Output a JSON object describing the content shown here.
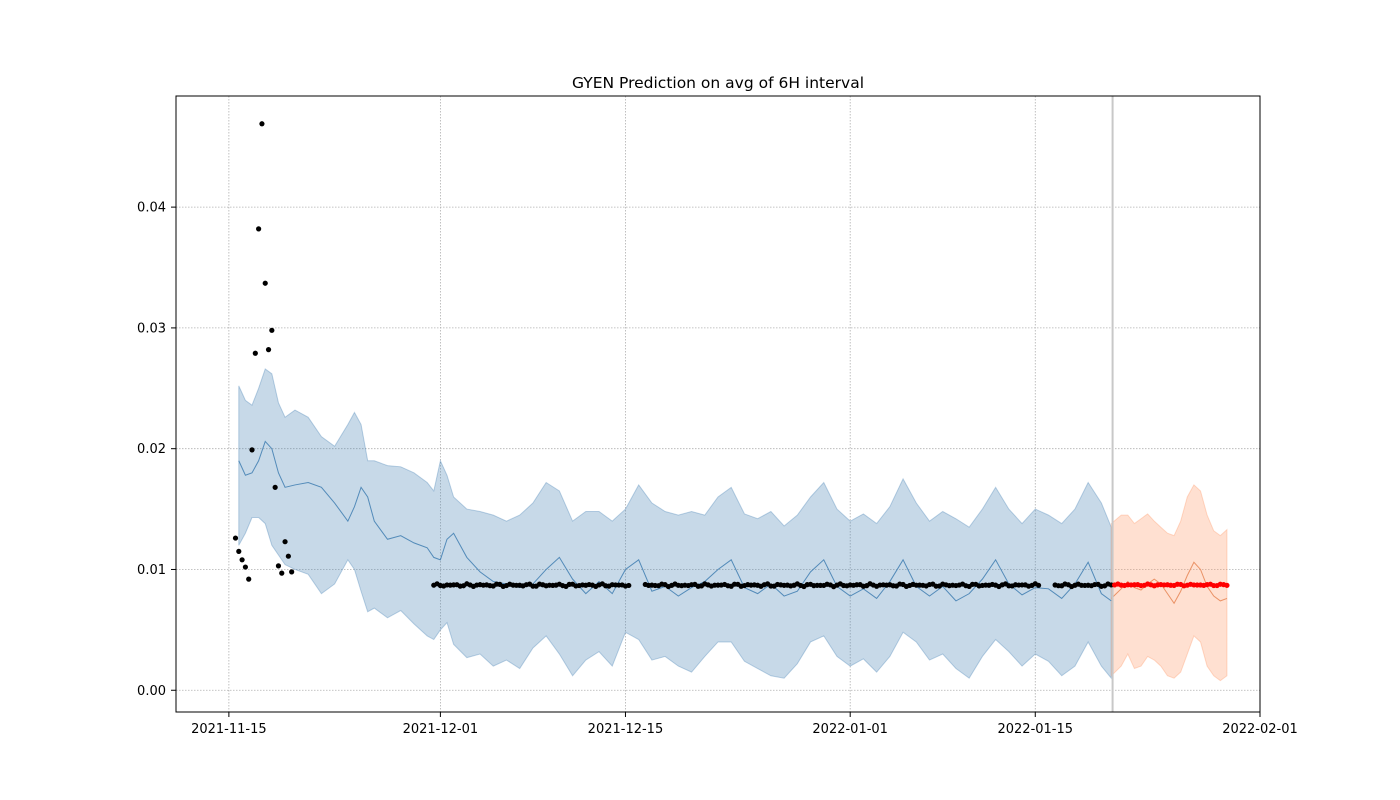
{
  "chart_data": {
    "type": "line",
    "title": "GYEN Prediction on avg of 6H interval",
    "xlabel": "",
    "ylabel": "",
    "x_type": "date",
    "xlim": [
      "2021-11-11",
      "2022-02-01"
    ],
    "ylim": [
      -0.0018,
      0.0492
    ],
    "x_ticks": [
      "2021-11-15",
      "2021-12-01",
      "2021-12-15",
      "2022-01-01",
      "2022-01-15",
      "2022-02-01"
    ],
    "y_ticks": [
      "0.00",
      "0.01",
      "0.02",
      "0.03",
      "0.04"
    ],
    "grid": true,
    "forecast_start": "2022-01-21",
    "colors": {
      "history_band": "#4682b4",
      "history_line": "#4682b4",
      "forecast_band": "#ff9966",
      "forecast_line": "#e8895a",
      "observed_points": "#000000",
      "forecast_points": "#ff0000",
      "divider": "#c8c8c8"
    },
    "series": [
      {
        "role": "history_fit",
        "band_style": "uncertainty",
        "x": [
          "2021-11-15 18:00",
          "2021-11-16 06:00",
          "2021-11-16 18:00",
          "2021-11-17 06:00",
          "2021-11-17 18:00",
          "2021-11-18 06:00",
          "2021-11-18 18:00",
          "2021-11-19 06:00",
          "2021-11-20 00:00",
          "2021-11-21 00:00",
          "2021-11-22 00:00",
          "2021-11-23 00:00",
          "2021-11-24 00:00",
          "2021-11-24 12:00",
          "2021-11-25 00:00",
          "2021-11-25 12:00",
          "2021-11-26 00:00",
          "2021-11-27 00:00",
          "2021-11-28 00:00",
          "2021-11-29 00:00",
          "2021-11-30 00:00",
          "2021-11-30 12:00",
          "2021-12-01 00:00",
          "2021-12-01 12:00",
          "2021-12-02 00:00",
          "2021-12-03 00:00",
          "2021-12-04 00:00",
          "2021-12-05 00:00",
          "2021-12-06 00:00",
          "2021-12-07 00:00",
          "2021-12-08 00:00",
          "2021-12-09 00:00",
          "2021-12-10 00:00",
          "2021-12-11 00:00",
          "2021-12-12 00:00",
          "2021-12-13 00:00",
          "2021-12-14 00:00",
          "2021-12-15 00:00",
          "2021-12-16 00:00",
          "2021-12-17 00:00",
          "2021-12-18 00:00",
          "2021-12-19 00:00",
          "2021-12-20 00:00",
          "2021-12-21 00:00",
          "2021-12-22 00:00",
          "2021-12-23 00:00",
          "2021-12-24 00:00",
          "2021-12-25 00:00",
          "2021-12-26 00:00",
          "2021-12-27 00:00",
          "2021-12-28 00:00",
          "2021-12-29 00:00",
          "2021-12-30 00:00",
          "2021-12-31 00:00",
          "2022-01-01 00:00",
          "2022-01-02 00:00",
          "2022-01-03 00:00",
          "2022-01-04 00:00",
          "2022-01-05 00:00",
          "2022-01-06 00:00",
          "2022-01-07 00:00",
          "2022-01-08 00:00",
          "2022-01-09 00:00",
          "2022-01-10 00:00",
          "2022-01-11 00:00",
          "2022-01-12 00:00",
          "2022-01-13 00:00",
          "2022-01-14 00:00",
          "2022-01-15 00:00",
          "2022-01-16 00:00",
          "2022-01-17 00:00",
          "2022-01-18 00:00",
          "2022-01-19 00:00",
          "2022-01-20 00:00",
          "2022-01-20 18:00"
        ],
        "y": [
          0.019,
          0.0178,
          0.018,
          0.019,
          0.0206,
          0.02,
          0.018,
          0.0168,
          0.017,
          0.0172,
          0.0168,
          0.0155,
          0.014,
          0.0152,
          0.0168,
          0.016,
          0.014,
          0.0125,
          0.0128,
          0.0122,
          0.0118,
          0.011,
          0.0108,
          0.0125,
          0.013,
          0.011,
          0.0098,
          0.009,
          0.0088,
          0.0085,
          0.0088,
          0.01,
          0.011,
          0.0092,
          0.008,
          0.009,
          0.008,
          0.01,
          0.0108,
          0.0082,
          0.0086,
          0.0078,
          0.0085,
          0.009,
          0.01,
          0.0108,
          0.0085,
          0.008,
          0.0088,
          0.0078,
          0.0082,
          0.0098,
          0.0108,
          0.0086,
          0.0078,
          0.0084,
          0.0076,
          0.009,
          0.0108,
          0.0086,
          0.0078,
          0.0086,
          0.0074,
          0.008,
          0.0092,
          0.0108,
          0.0088,
          0.0079,
          0.0085,
          0.0084,
          0.0076,
          0.0088,
          0.0106,
          0.008,
          0.0074
        ],
        "y_lower": [
          0.012,
          0.013,
          0.0143,
          0.0143,
          0.0138,
          0.012,
          0.0112,
          0.0104,
          0.01,
          0.0096,
          0.008,
          0.0088,
          0.0108,
          0.01,
          0.0082,
          0.0065,
          0.0068,
          0.006,
          0.0066,
          0.0055,
          0.0045,
          0.0042,
          0.005,
          0.0056,
          0.0038,
          0.0027,
          0.003,
          0.002,
          0.0025,
          0.0018,
          0.0035,
          0.0045,
          0.003,
          0.0012,
          0.0025,
          0.0032,
          0.002,
          0.0048,
          0.0042,
          0.0025,
          0.0028,
          0.002,
          0.0015,
          0.0028,
          0.004,
          0.004,
          0.0024,
          0.0018,
          0.0012,
          0.001,
          0.0022,
          0.004,
          0.0045,
          0.0028,
          0.002,
          0.0026,
          0.0015,
          0.0028,
          0.0048,
          0.004,
          0.0025,
          0.003,
          0.0018,
          0.001,
          0.0028,
          0.0042,
          0.0032,
          0.002,
          0.003,
          0.0024,
          0.0012,
          0.002,
          0.004,
          0.002,
          0.001
        ],
        "y_upper": [
          0.0252,
          0.024,
          0.0236,
          0.025,
          0.0266,
          0.0262,
          0.0238,
          0.0226,
          0.0232,
          0.0226,
          0.021,
          0.0202,
          0.022,
          0.023,
          0.022,
          0.019,
          0.019,
          0.0186,
          0.0185,
          0.018,
          0.0172,
          0.0165,
          0.019,
          0.0178,
          0.016,
          0.015,
          0.0148,
          0.0145,
          0.014,
          0.0145,
          0.0155,
          0.0172,
          0.0165,
          0.014,
          0.0148,
          0.0148,
          0.014,
          0.015,
          0.017,
          0.0155,
          0.0148,
          0.0145,
          0.0148,
          0.0145,
          0.016,
          0.0168,
          0.0146,
          0.0142,
          0.0148,
          0.0136,
          0.0145,
          0.016,
          0.0172,
          0.015,
          0.014,
          0.0146,
          0.0138,
          0.0152,
          0.0175,
          0.0155,
          0.014,
          0.0148,
          0.0142,
          0.0135,
          0.015,
          0.0168,
          0.015,
          0.0138,
          0.015,
          0.0145,
          0.0138,
          0.015,
          0.0172,
          0.0155,
          0.0135
        ]
      },
      {
        "role": "forecast",
        "band_style": "uncertainty",
        "x": [
          "2022-01-20 18:00",
          "2022-01-21 12:00",
          "2022-01-22 00:00",
          "2022-01-22 12:00",
          "2022-01-23 00:00",
          "2022-01-23 12:00",
          "2022-01-24 00:00",
          "2022-01-24 12:00",
          "2022-01-25 00:00",
          "2022-01-25 12:00",
          "2022-01-26 00:00",
          "2022-01-26 12:00",
          "2022-01-27 00:00",
          "2022-01-27 12:00",
          "2022-01-28 00:00",
          "2022-01-28 12:00",
          "2022-01-29 00:00",
          "2022-01-29 12:00"
        ],
        "y": [
          0.0076,
          0.0084,
          0.009,
          0.0085,
          0.0083,
          0.0088,
          0.0092,
          0.0088,
          0.008,
          0.0072,
          0.0082,
          0.0095,
          0.0106,
          0.01,
          0.0086,
          0.0078,
          0.0074,
          0.0076
        ],
        "y_lower": [
          0.0012,
          0.002,
          0.003,
          0.0018,
          0.002,
          0.0028,
          0.0025,
          0.002,
          0.0012,
          0.001,
          0.0015,
          0.003,
          0.0045,
          0.004,
          0.002,
          0.0012,
          0.0008,
          0.0012
        ],
        "y_upper": [
          0.0138,
          0.0145,
          0.0145,
          0.0138,
          0.0142,
          0.0146,
          0.014,
          0.0135,
          0.013,
          0.0128,
          0.014,
          0.016,
          0.017,
          0.0165,
          0.0145,
          0.0132,
          0.0128,
          0.0133
        ]
      },
      {
        "role": "observed",
        "x": [
          "2021-11-15 12:00",
          "2021-11-15 18:00",
          "2021-11-16 00:00",
          "2021-11-16 06:00",
          "2021-11-16 12:00",
          "2021-11-16 18:00",
          "2021-11-17 00:00",
          "2021-11-17 06:00",
          "2021-11-17 12:00",
          "2021-11-17 18:00",
          "2021-11-18 00:00",
          "2021-11-18 06:00",
          "2021-11-18 12:00",
          "2021-11-18 18:00",
          "2021-11-19 00:00",
          "2021-11-19 06:00",
          "2021-11-19 12:00",
          "2021-11-19 18:00"
        ],
        "y": [
          0.0126,
          0.0115,
          0.0108,
          0.0102,
          0.0092,
          0.0199,
          0.0279,
          0.0382,
          0.0469,
          0.0337,
          0.0282,
          0.0298,
          0.0168,
          0.0103,
          0.0097,
          0.0123,
          0.0111,
          0.0098
        ]
      },
      {
        "role": "observed",
        "x_start": "2021-11-30 12:00",
        "x_end": "2022-01-20 18:00",
        "step_hours": 6,
        "gaps": [
          [
            "2021-12-15 12:00",
            "2021-12-16 06:00"
          ],
          [
            "2022-01-15 12:00",
            "2022-01-16 06:00"
          ]
        ],
        "y_value": 0.0087,
        "y_jitter": 0.00012
      },
      {
        "role": "forecast_points",
        "x_start": "2022-01-21 00:00",
        "x_end": "2022-01-29 12:00",
        "step_hours": 6,
        "y_value": 0.00872,
        "y_jitter": 8e-05
      }
    ]
  }
}
